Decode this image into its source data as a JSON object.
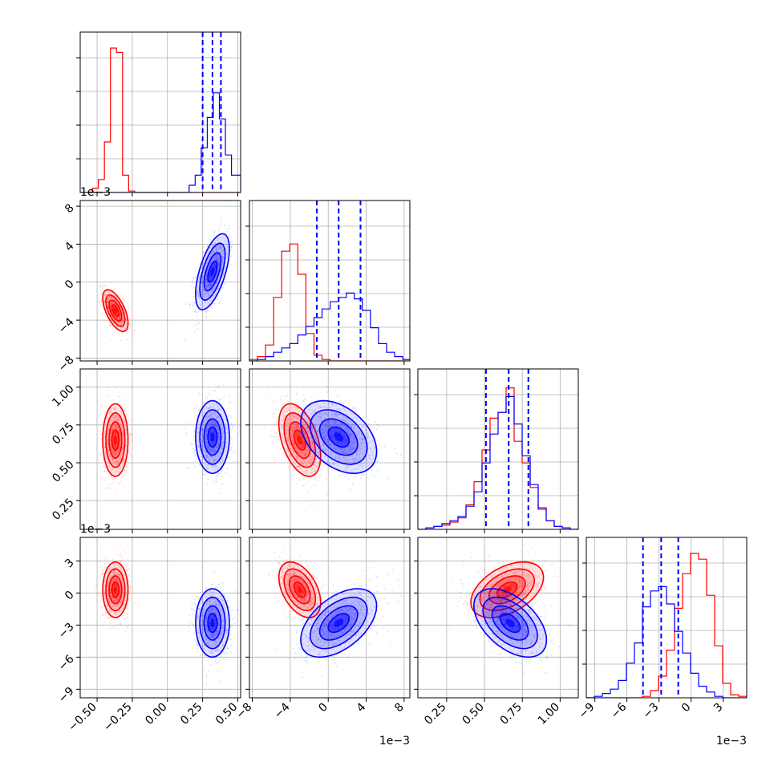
{
  "chart_data": {
    "type": "corner",
    "colors": {
      "red": "#ff0000",
      "blue": "#0000ff",
      "grid": "#b0b0b0",
      "axes": "#000000"
    },
    "parameters": [
      {
        "range": [
          -0.62,
          0.52
        ],
        "ticks": [
          -0.5,
          -0.25,
          0.0,
          0.25,
          0.5
        ],
        "tick_labels": [
          "−0.50",
          "−0.25",
          "0.00",
          "0.25",
          "0.50"
        ],
        "scale_label": ""
      },
      {
        "range": [
          -8.3,
          8.6
        ],
        "ticks": [
          -8,
          -4,
          0,
          4,
          8
        ],
        "tick_labels": [
          "−8",
          "−4",
          "0",
          "4",
          "8"
        ],
        "scale_label": "1e−3"
      },
      {
        "range": [
          0.06,
          1.12
        ],
        "ticks": [
          0.25,
          0.5,
          0.75,
          1.0
        ],
        "tick_labels": [
          "0.25",
          "0.50",
          "0.75",
          "1.00"
        ],
        "scale_label": ""
      },
      {
        "range": [
          -9.8,
          5.2
        ],
        "ticks": [
          -9,
          -6,
          -3,
          0,
          3
        ],
        "tick_labels": [
          "−9",
          "−6",
          "−3",
          "0",
          "3"
        ],
        "scale_label": "1e−3"
      }
    ],
    "row_scale_labels": [
      "",
      "1e−3",
      "",
      "1e−3"
    ],
    "column_scale_labels": [
      "",
      "1e−3",
      "",
      "1e−3"
    ],
    "series": [
      {
        "color": "red",
        "means": [
          -0.37,
          -3.0,
          0.65,
          0.3
        ],
        "stds": [
          0.045,
          1.1,
          0.12,
          1.3
        ],
        "correlations": {
          "0-1": -0.6,
          "0-2": 0.0,
          "0-3": 0.0,
          "1-2": -0.45,
          "1-3": -0.45,
          "2-3": 0.45
        }
      },
      {
        "color": "blue",
        "means": [
          0.32,
          1.1,
          0.67,
          -2.8
        ],
        "stds": [
          0.06,
          2.0,
          0.12,
          1.6
        ],
        "correlations": {
          "0-1": 0.6,
          "0-2": 0.0,
          "0-3": 0.0,
          "1-2": -0.4,
          "1-3": 0.5,
          "2-3": -0.5
        },
        "quantiles": [
          [
            0.25,
            0.32,
            0.38
          ],
          [
            -1.2,
            1.1,
            3.4
          ],
          [
            0.51,
            0.66,
            0.79
          ],
          [
            -4.5,
            -2.8,
            -1.2
          ]
        ]
      }
    ],
    "histograms": [
      {
        "red": {
          "edges": [
            -0.62,
            -0.577,
            -0.534,
            -0.491,
            -0.448,
            -0.405,
            -0.362,
            -0.319,
            -0.276,
            -0.233,
            -0.19,
            -0.147,
            -0.104,
            -0.061,
            -0.018,
            0.025,
            0.068,
            0.111,
            0.154,
            0.197,
            0.24,
            0.283,
            0.326,
            0.369,
            0.412,
            0.455,
            0.52
          ],
          "counts": [
            0,
            0,
            0.03,
            0.09,
            0.35,
            1.0,
            0.97,
            0.12,
            0.01,
            0,
            0,
            0,
            0,
            0,
            0,
            0,
            0,
            0,
            0,
            0,
            0,
            0,
            0,
            0,
            0,
            0
          ]
        },
        "blue": {
          "edges": [
            -0.62,
            -0.577,
            -0.534,
            -0.491,
            -0.448,
            -0.405,
            -0.362,
            -0.319,
            -0.276,
            -0.233,
            -0.19,
            -0.147,
            -0.104,
            -0.061,
            -0.018,
            0.025,
            0.068,
            0.111,
            0.154,
            0.197,
            0.24,
            0.283,
            0.326,
            0.369,
            0.412,
            0.455,
            0.52
          ],
          "counts": [
            0,
            0,
            0,
            0,
            0,
            0,
            0,
            0,
            0,
            0,
            0,
            0,
            0,
            0,
            0,
            0,
            0,
            0,
            0.05,
            0.12,
            0.31,
            0.52,
            0.69,
            0.51,
            0.26,
            0.12,
            0.02
          ]
        }
      },
      {
        "red": {
          "edges": [
            -8.3,
            -7.45,
            -6.6,
            -5.75,
            -4.9,
            -4.05,
            -3.2,
            -2.35,
            -1.5,
            -0.65,
            0.2,
            1.05,
            1.9,
            2.75,
            3.6,
            4.45,
            5.3,
            6.15,
            7.0,
            7.85,
            8.6
          ],
          "counts": [
            0.01,
            0.03,
            0.11,
            0.44,
            0.76,
            0.81,
            0.6,
            0.19,
            0.04,
            0.01,
            0,
            0,
            0,
            0,
            0,
            0,
            0,
            0,
            0,
            0
          ]
        },
        "blue": {
          "edges": [
            -8.3,
            -7.45,
            -6.6,
            -5.75,
            -4.9,
            -4.05,
            -3.2,
            -2.35,
            -1.5,
            -0.65,
            0.2,
            1.05,
            1.9,
            2.75,
            3.6,
            4.45,
            5.3,
            6.15,
            7.0,
            7.85,
            8.6
          ],
          "counts": [
            0,
            0.01,
            0.03,
            0.06,
            0.09,
            0.12,
            0.18,
            0.24,
            0.3,
            0.36,
            0.41,
            0.44,
            0.47,
            0.43,
            0.35,
            0.23,
            0.12,
            0.06,
            0.03,
            0.01
          ]
        }
      },
      {
        "red": {
          "edges": [
            0.06,
            0.113,
            0.166,
            0.219,
            0.272,
            0.325,
            0.378,
            0.431,
            0.484,
            0.537,
            0.59,
            0.643,
            0.696,
            0.749,
            0.802,
            0.855,
            0.908,
            0.961,
            1.014,
            1.067,
            1.12
          ],
          "counts": [
            0,
            0.01,
            0.02,
            0.03,
            0.05,
            0.08,
            0.17,
            0.33,
            0.55,
            0.77,
            0.81,
            0.98,
            0.61,
            0.46,
            0.29,
            0.15,
            0.06,
            0.02,
            0.01,
            0
          ]
        },
        "blue": {
          "edges": [
            0.06,
            0.113,
            0.166,
            0.219,
            0.272,
            0.325,
            0.378,
            0.431,
            0.484,
            0.537,
            0.59,
            0.643,
            0.696,
            0.749,
            0.802,
            0.855,
            0.908,
            0.961,
            1.014,
            1.067,
            1.12
          ],
          "counts": [
            0,
            0.01,
            0.02,
            0.04,
            0.06,
            0.09,
            0.16,
            0.26,
            0.46,
            0.66,
            0.81,
            0.92,
            0.73,
            0.51,
            0.31,
            0.14,
            0.06,
            0.02,
            0.01,
            0
          ]
        }
      },
      {
        "red": {
          "edges": [
            -9.8,
            -9.05,
            -8.3,
            -7.55,
            -6.8,
            -6.05,
            -5.3,
            -4.55,
            -3.8,
            -3.05,
            -2.3,
            -1.55,
            -0.8,
            -0.05,
            0.7,
            1.45,
            2.2,
            2.95,
            3.7,
            4.45,
            5.2
          ],
          "counts": [
            0,
            0,
            0,
            0,
            0,
            0,
            0,
            0.01,
            0.05,
            0.15,
            0.33,
            0.62,
            0.86,
            1.0,
            0.96,
            0.71,
            0.36,
            0.1,
            0.02,
            0.01
          ]
        },
        "blue": {
          "edges": [
            -9.8,
            -9.05,
            -8.3,
            -7.55,
            -6.8,
            -6.05,
            -5.3,
            -4.55,
            -3.8,
            -3.05,
            -2.3,
            -1.55,
            -0.8,
            -0.05,
            0.7,
            1.45,
            2.2,
            2.95,
            3.7,
            4.45,
            5.2
          ],
          "counts": [
            0,
            0.01,
            0.03,
            0.06,
            0.12,
            0.24,
            0.38,
            0.63,
            0.74,
            0.77,
            0.65,
            0.46,
            0.31,
            0.17,
            0.08,
            0.04,
            0.01,
            0,
            0,
            0
          ]
        }
      }
    ]
  }
}
